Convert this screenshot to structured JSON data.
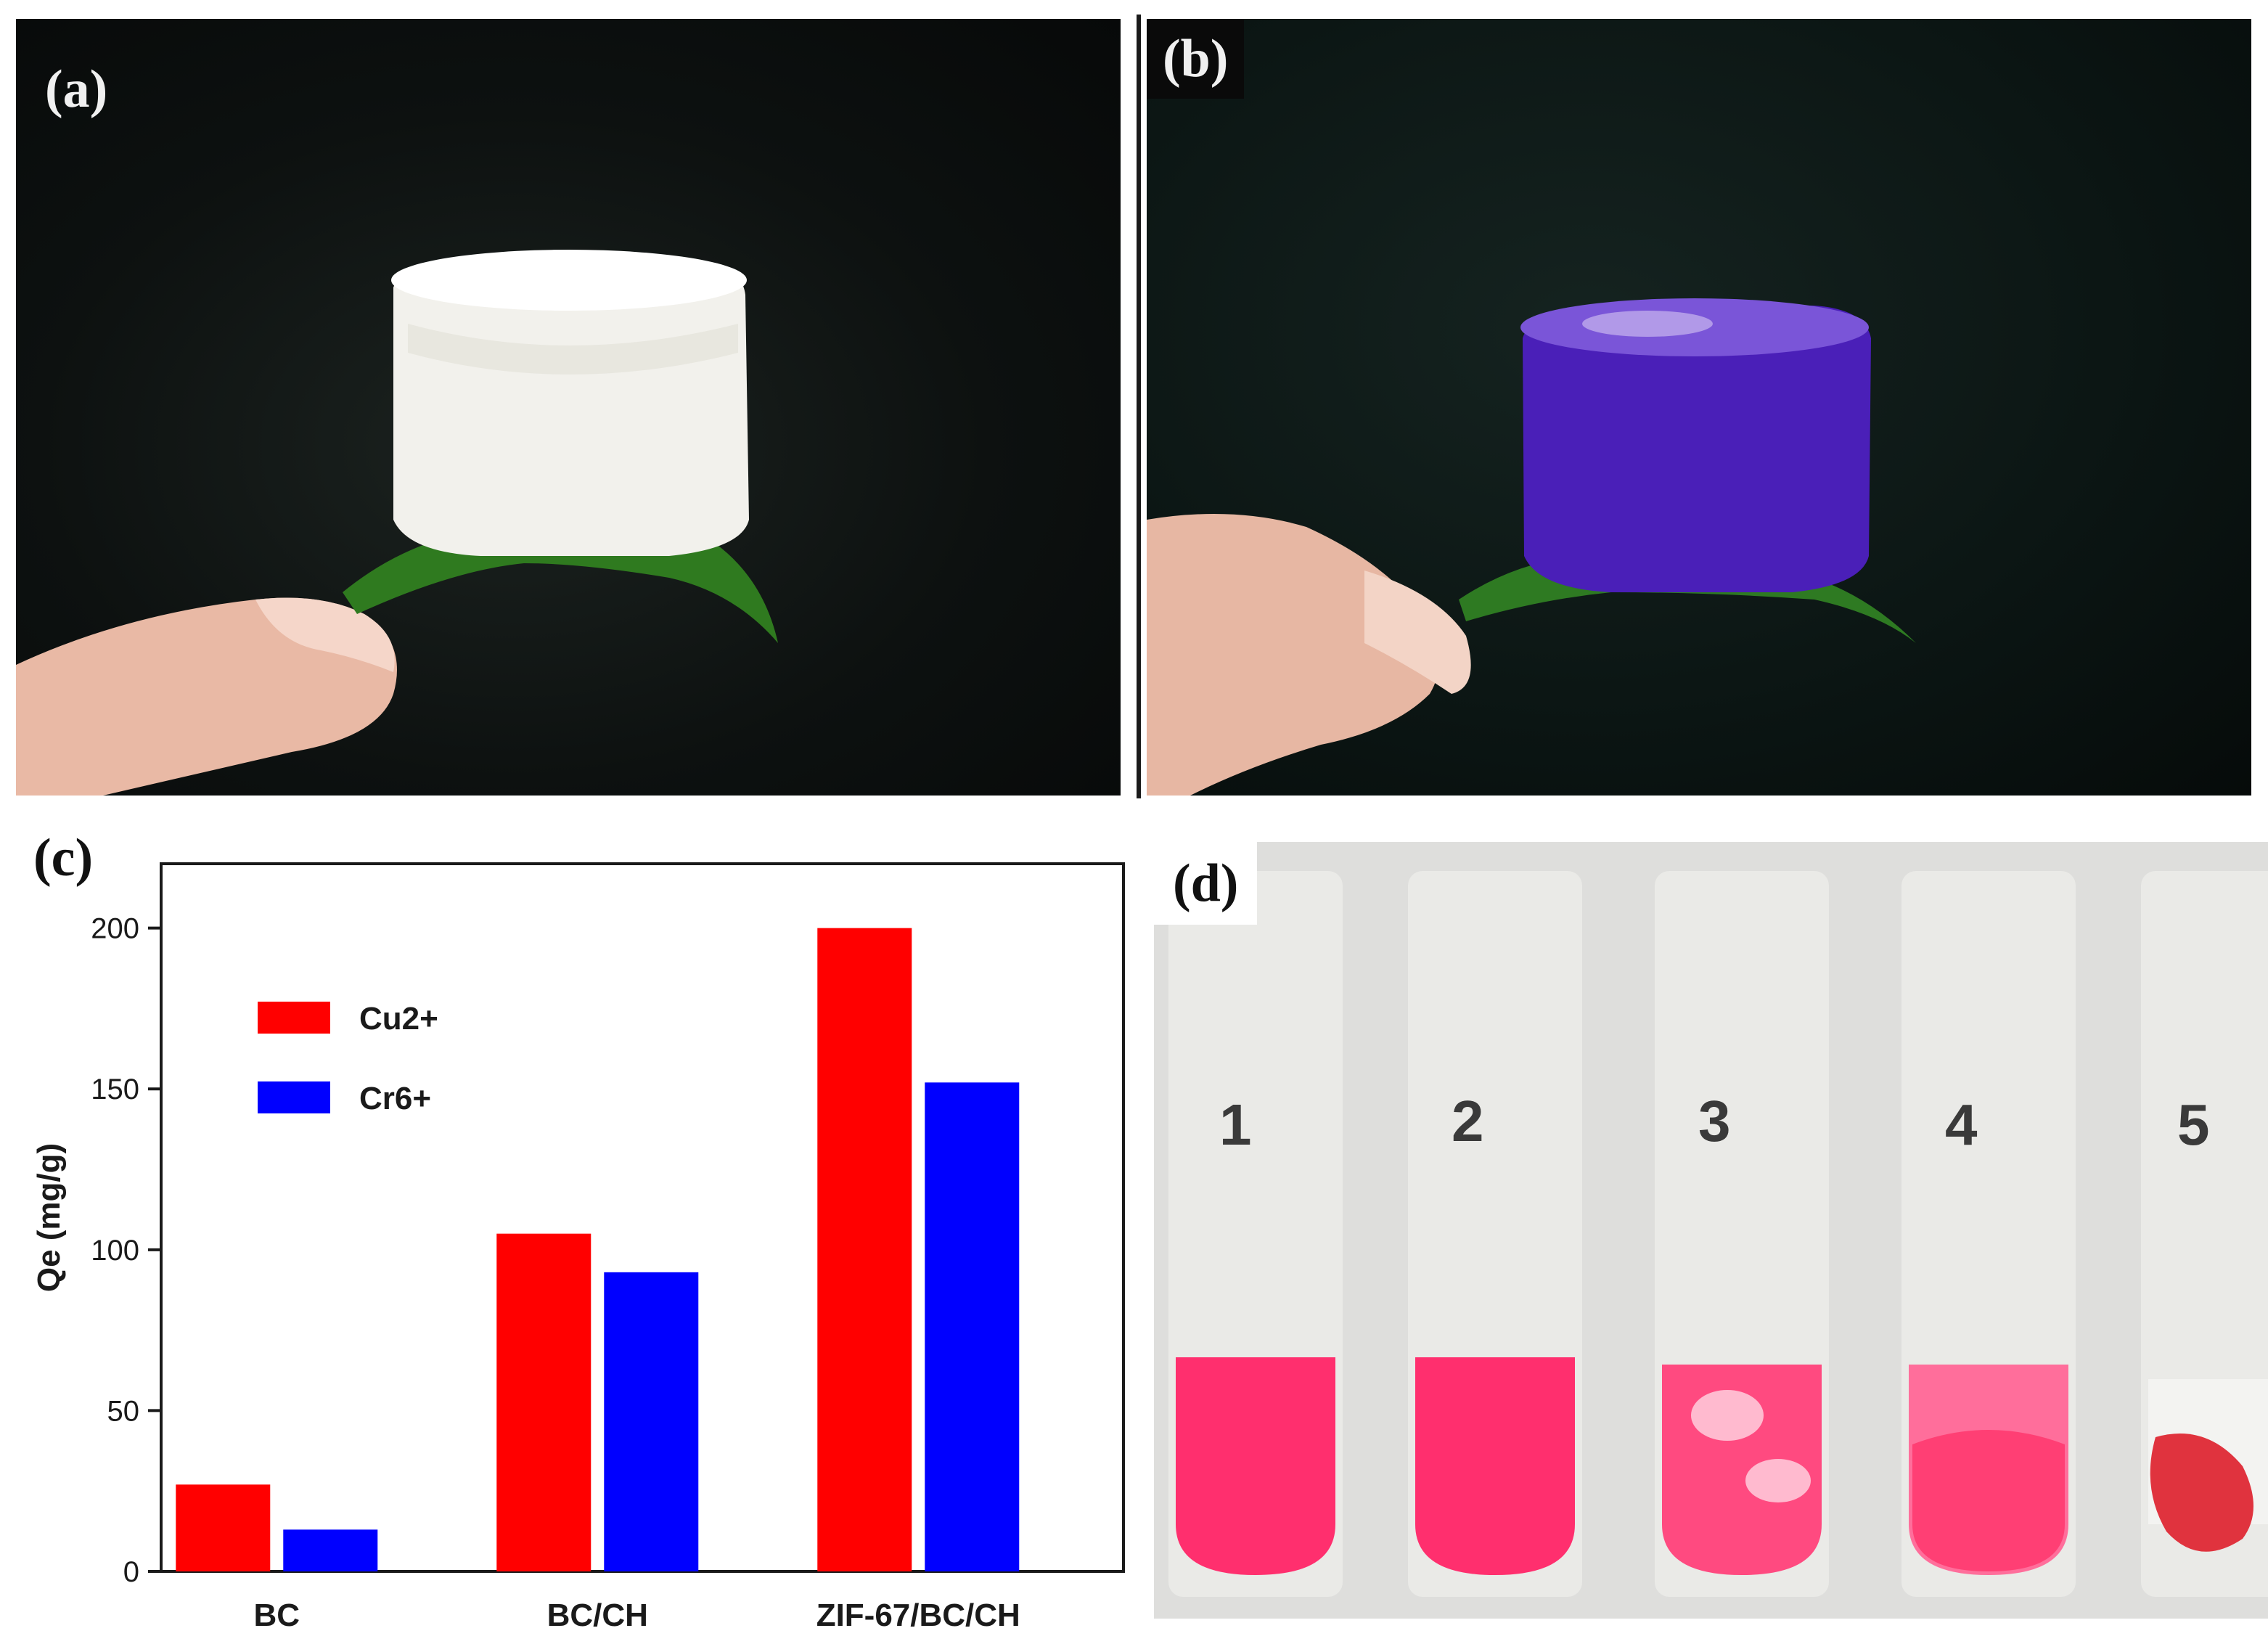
{
  "panels": {
    "a": {
      "label": "(a)"
    },
    "b": {
      "label": "(b)"
    },
    "c": {
      "label": "(c)"
    },
    "d": {
      "label": "(d)",
      "tube_labels": [
        "1",
        "2",
        "3",
        "4",
        "5"
      ]
    }
  },
  "colors": {
    "cu_series": "#ff0000",
    "cr_series": "#0000ff",
    "solution_pink": "#ff2f6e",
    "sponge_white": "#f2f1ec",
    "sponge_purple": "#4a1fb8"
  },
  "chart_data": {
    "type": "bar",
    "categories": [
      "BC",
      "BC/CH",
      "ZIF-67/BC/CH"
    ],
    "series": [
      {
        "name": "Cu2+",
        "values": [
          27,
          105,
          200
        ],
        "color": "#ff0000"
      },
      {
        "name": "Cr6+",
        "values": [
          13,
          93,
          152
        ],
        "color": "#0000ff"
      }
    ],
    "ylabel": "Qe (mg/g)",
    "ylim": [
      0,
      220
    ],
    "yticks": [
      0,
      50,
      100,
      150,
      200
    ],
    "legend": [
      "Cu2+",
      "Cr6+"
    ],
    "legend_position": "top-left",
    "grid": false
  }
}
